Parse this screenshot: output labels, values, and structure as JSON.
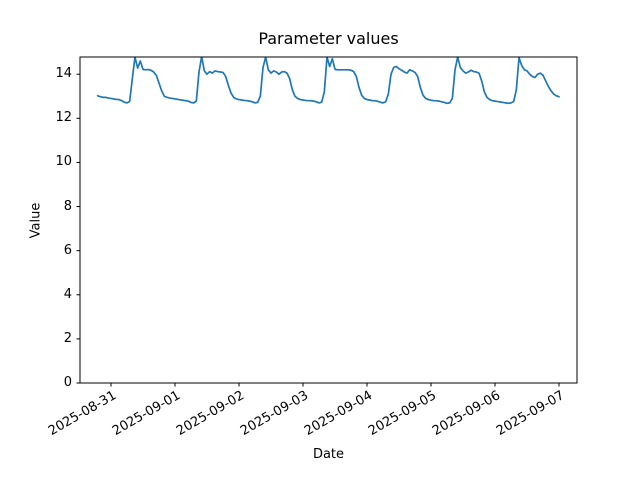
{
  "chart_data": {
    "type": "line",
    "title": "Parameter values",
    "xlabel": "Date",
    "ylabel": "Value",
    "line_color": "#1f77b4",
    "line_width": 1.7,
    "background": "#ffffff",
    "grid": false,
    "legend": "none",
    "ylim": [
      0,
      14.78
    ],
    "yticks": [
      0,
      2,
      4,
      6,
      8,
      10,
      12,
      14
    ],
    "xtick_labels": [
      "2025-08-31",
      "2025-09-01",
      "2025-09-02",
      "2025-09-03",
      "2025-09-04",
      "2025-09-05",
      "2025-09-06",
      "2025-09-07"
    ],
    "xlim_days": [
      -0.484,
      7.281
    ],
    "x_start": "2025-08-30 19:00",
    "x_start_offset_hours": -5,
    "x_interval_hours": 1,
    "values": [
      13.02,
      12.98,
      12.95,
      12.95,
      12.92,
      12.9,
      12.88,
      12.86,
      12.85,
      12.8,
      12.73,
      12.7,
      12.76,
      13.8,
      14.78,
      14.28,
      14.6,
      14.22,
      14.2,
      14.21,
      14.18,
      14.1,
      13.95,
      13.6,
      13.25,
      13.0,
      12.95,
      12.92,
      12.9,
      12.88,
      12.86,
      12.84,
      12.82,
      12.8,
      12.78,
      12.72,
      12.7,
      12.78,
      14.1,
      14.8,
      14.15,
      14.0,
      14.12,
      14.05,
      14.15,
      14.12,
      14.1,
      14.08,
      13.9,
      13.5,
      13.15,
      12.95,
      12.88,
      12.85,
      12.83,
      12.81,
      12.8,
      12.78,
      12.75,
      12.7,
      12.72,
      13.0,
      14.3,
      14.78,
      14.2,
      14.05,
      14.15,
      14.1,
      14.0,
      14.1,
      14.12,
      14.05,
      13.8,
      13.3,
      13.0,
      12.9,
      12.85,
      12.83,
      12.81,
      12.8,
      12.8,
      12.78,
      12.75,
      12.7,
      12.73,
      13.2,
      14.78,
      14.35,
      14.7,
      14.22,
      14.2,
      14.2,
      14.2,
      14.2,
      14.2,
      14.18,
      14.12,
      13.9,
      13.4,
      13.05,
      12.9,
      12.85,
      12.83,
      12.8,
      12.8,
      12.77,
      12.73,
      12.7,
      12.75,
      13.1,
      14.0,
      14.3,
      14.35,
      14.25,
      14.18,
      14.1,
      14.05,
      14.2,
      14.15,
      14.08,
      13.9,
      13.4,
      13.05,
      12.9,
      12.85,
      12.82,
      12.8,
      12.8,
      12.78,
      12.75,
      12.72,
      12.68,
      12.7,
      12.9,
      14.2,
      14.78,
      14.3,
      14.15,
      14.05,
      14.1,
      14.18,
      14.12,
      14.1,
      14.05,
      13.7,
      13.2,
      12.95,
      12.85,
      12.8,
      12.78,
      12.76,
      12.74,
      12.72,
      12.7,
      12.68,
      12.7,
      12.76,
      13.3,
      14.75,
      14.4,
      14.2,
      14.15,
      14.0,
      13.9,
      13.85,
      14.0,
      14.05,
      13.95,
      13.7,
      13.45,
      13.25,
      13.1,
      13.02,
      12.98
    ]
  }
}
